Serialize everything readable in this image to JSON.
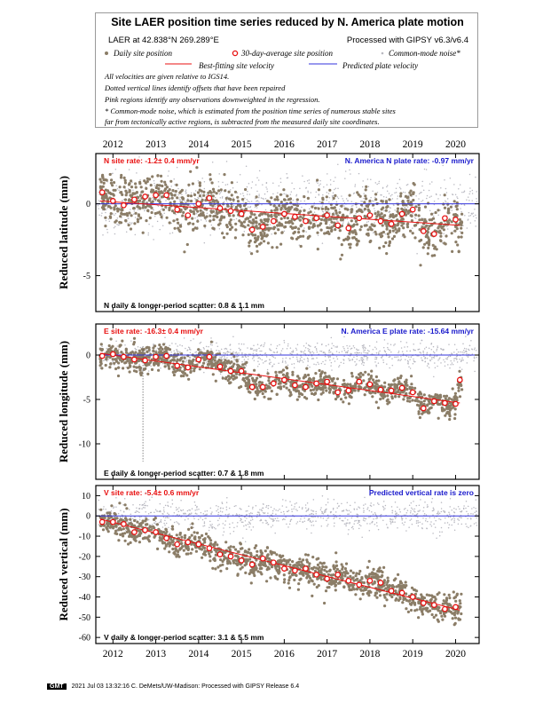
{
  "header": {
    "title": "Site LAER position time series reduced by N. America plate motion",
    "location": "LAER at 42.838°N 269.289°E",
    "processed": "Processed with GIPSY v6.3/v6.4",
    "legend": {
      "daily": "Daily site position",
      "avg30": "30-day-average site position",
      "cmn": "Common-mode noise*",
      "best_fit": "Best-fitting site velocity",
      "predicted": "Predicted plate velocity"
    },
    "notes": [
      "All velocities are given relative to IGS14.",
      "Dotted vertical lines identify offsets that have been repaired",
      "Pink regions identify any observations downweighted in the regression.",
      "* Common-mode noise, which is estimated from the position time series of numerous stable sites",
      "far from tectonically active regions, is subtracted from the measured daily site coordinates."
    ]
  },
  "colors": {
    "daily": "#8b7d67",
    "avg30": "#e81010",
    "cmn": "#b8b8c0",
    "fit": "#e81010",
    "predicted": "#3333dd",
    "rate_text": "#e81010",
    "plate_text": "#1a1acc"
  },
  "chart_data": [
    {
      "type": "scatter",
      "panel": "north",
      "ylabel": "Reduced latitude (mm)",
      "ylim": [
        -7.5,
        3.5
      ],
      "yticks": [
        0,
        -5
      ],
      "xlim": [
        2011.6,
        2020.55
      ],
      "xticks": [
        2012,
        2013,
        2014,
        2015,
        2016,
        2017,
        2018,
        2019,
        2020
      ],
      "site_rate": "N site rate:  -1.2± 0.4 mm/yr",
      "plate_rate": "N. America N plate rate:  -0.97 mm/yr",
      "scatter_label": "N daily & longer-period scatter:    0.8 &    1.1 mm",
      "fit_line": {
        "x": [
          2011.7,
          2020.1
        ],
        "y": [
          0.2,
          -1.5
        ]
      },
      "predicted_line": {
        "y": 0
      },
      "scatter_sd": 0.9,
      "avg30": [
        {
          "x": 2011.75,
          "y": 0.8
        },
        {
          "x": 2012.0,
          "y": 0.2
        },
        {
          "x": 2012.25,
          "y": -0.1
        },
        {
          "x": 2012.5,
          "y": 0.3
        },
        {
          "x": 2012.75,
          "y": 0.5
        },
        {
          "x": 2013.0,
          "y": 0.6
        },
        {
          "x": 2013.25,
          "y": 0.6
        },
        {
          "x": 2013.5,
          "y": -0.4
        },
        {
          "x": 2013.75,
          "y": -0.8
        },
        {
          "x": 2014.0,
          "y": 0.0
        },
        {
          "x": 2014.25,
          "y": 0.4
        },
        {
          "x": 2014.5,
          "y": -0.3
        },
        {
          "x": 2014.75,
          "y": -0.5
        },
        {
          "x": 2015.0,
          "y": -0.7
        },
        {
          "x": 2015.25,
          "y": -1.8
        },
        {
          "x": 2015.5,
          "y": -1.6
        },
        {
          "x": 2015.75,
          "y": -1.2
        },
        {
          "x": 2016.0,
          "y": -0.7
        },
        {
          "x": 2016.25,
          "y": -0.9
        },
        {
          "x": 2016.5,
          "y": -1.2
        },
        {
          "x": 2016.75,
          "y": -1.0
        },
        {
          "x": 2017.0,
          "y": -0.8
        },
        {
          "x": 2017.25,
          "y": -1.5
        },
        {
          "x": 2017.5,
          "y": -1.7
        },
        {
          "x": 2017.75,
          "y": -1.0
        },
        {
          "x": 2018.0,
          "y": -0.8
        },
        {
          "x": 2018.25,
          "y": -1.2
        },
        {
          "x": 2018.5,
          "y": -1.4
        },
        {
          "x": 2018.75,
          "y": -0.7
        },
        {
          "x": 2019.0,
          "y": -0.4
        },
        {
          "x": 2019.25,
          "y": -1.9
        },
        {
          "x": 2019.5,
          "y": -2.1
        },
        {
          "x": 2019.75,
          "y": -1.0
        },
        {
          "x": 2020.0,
          "y": -1.1
        }
      ]
    },
    {
      "type": "scatter",
      "panel": "east",
      "ylabel": "Reduced longitude (mm)",
      "ylim": [
        -14,
        3.5
      ],
      "yticks": [
        0,
        -5,
        -10
      ],
      "xlim": [
        2011.6,
        2020.55
      ],
      "site_rate": "E site rate:  -16.3± 0.4 mm/yr",
      "plate_rate": "N. America E plate rate:  -15.64 mm/yr",
      "scatter_label": "E daily & longer-period scatter:    0.7 &    1.8 mm",
      "fit_line": {
        "x": [
          2011.7,
          2020.1
        ],
        "y": [
          0.2,
          -5.4
        ]
      },
      "predicted_line": {
        "y": 0
      },
      "offset_line_x": 2012.7,
      "scatter_sd": 0.7,
      "avg30": [
        {
          "x": 2011.75,
          "y": -0.1
        },
        {
          "x": 2012.0,
          "y": 0.1
        },
        {
          "x": 2012.25,
          "y": -0.2
        },
        {
          "x": 2012.5,
          "y": -0.5
        },
        {
          "x": 2012.75,
          "y": -0.6
        },
        {
          "x": 2013.0,
          "y": -0.2
        },
        {
          "x": 2013.25,
          "y": -0.1
        },
        {
          "x": 2013.5,
          "y": -1.2
        },
        {
          "x": 2013.75,
          "y": -1.4
        },
        {
          "x": 2014.0,
          "y": -0.5
        },
        {
          "x": 2014.25,
          "y": -0.2
        },
        {
          "x": 2014.5,
          "y": -1.3
        },
        {
          "x": 2014.75,
          "y": -1.8
        },
        {
          "x": 2015.0,
          "y": -1.8
        },
        {
          "x": 2015.25,
          "y": -3.6
        },
        {
          "x": 2015.5,
          "y": -3.6
        },
        {
          "x": 2015.75,
          "y": -3.2
        },
        {
          "x": 2016.0,
          "y": -2.8
        },
        {
          "x": 2016.25,
          "y": -3.4
        },
        {
          "x": 2016.5,
          "y": -3.6
        },
        {
          "x": 2016.75,
          "y": -3.2
        },
        {
          "x": 2017.0,
          "y": -3.0
        },
        {
          "x": 2017.25,
          "y": -4.2
        },
        {
          "x": 2017.5,
          "y": -4.0
        },
        {
          "x": 2017.75,
          "y": -3.0
        },
        {
          "x": 2018.0,
          "y": -3.3
        },
        {
          "x": 2018.25,
          "y": -3.9
        },
        {
          "x": 2018.5,
          "y": -4.0
        },
        {
          "x": 2018.75,
          "y": -3.7
        },
        {
          "x": 2019.0,
          "y": -4.2
        },
        {
          "x": 2019.25,
          "y": -6.0
        },
        {
          "x": 2019.5,
          "y": -5.2
        },
        {
          "x": 2019.75,
          "y": -5.4
        },
        {
          "x": 2020.0,
          "y": -5.5
        },
        {
          "x": 2020.1,
          "y": -2.8
        }
      ]
    },
    {
      "type": "scatter",
      "panel": "vertical",
      "ylabel": "Reduced vertical (mm)",
      "ylim": [
        -63,
        15
      ],
      "yticks": [
        10,
        0,
        -10,
        -20,
        -30,
        -40,
        -50,
        -60
      ],
      "xlim": [
        2011.6,
        2020.55
      ],
      "site_rate": "V site rate:  -5.4± 0.6 mm/yr",
      "plate_rate": "Predicted vertical rate is zero",
      "scatter_label": "V daily & longer-period scatter:    3.1 &    5.5 mm",
      "fit_line": {
        "x": [
          2011.7,
          2020.1
        ],
        "y": [
          -1.5,
          -46.5
        ]
      },
      "predicted_line": {
        "y": 0
      },
      "scatter_sd": 3.5,
      "avg30": [
        {
          "x": 2011.75,
          "y": -3
        },
        {
          "x": 2012.0,
          "y": -3
        },
        {
          "x": 2012.25,
          "y": -4
        },
        {
          "x": 2012.5,
          "y": -8
        },
        {
          "x": 2012.75,
          "y": -7
        },
        {
          "x": 2013.0,
          "y": -8
        },
        {
          "x": 2013.25,
          "y": -11
        },
        {
          "x": 2013.5,
          "y": -14
        },
        {
          "x": 2013.75,
          "y": -13
        },
        {
          "x": 2014.0,
          "y": -14
        },
        {
          "x": 2014.25,
          "y": -16
        },
        {
          "x": 2014.5,
          "y": -19
        },
        {
          "x": 2014.75,
          "y": -20
        },
        {
          "x": 2015.0,
          "y": -22
        },
        {
          "x": 2015.25,
          "y": -24
        },
        {
          "x": 2015.5,
          "y": -21
        },
        {
          "x": 2015.75,
          "y": -23
        },
        {
          "x": 2016.0,
          "y": -26
        },
        {
          "x": 2016.25,
          "y": -27
        },
        {
          "x": 2016.5,
          "y": -26
        },
        {
          "x": 2016.75,
          "y": -29
        },
        {
          "x": 2017.0,
          "y": -31
        },
        {
          "x": 2017.25,
          "y": -29
        },
        {
          "x": 2017.5,
          "y": -32
        },
        {
          "x": 2017.75,
          "y": -34
        },
        {
          "x": 2018.0,
          "y": -32
        },
        {
          "x": 2018.25,
          "y": -33
        },
        {
          "x": 2018.5,
          "y": -37
        },
        {
          "x": 2018.75,
          "y": -38
        },
        {
          "x": 2019.0,
          "y": -40
        },
        {
          "x": 2019.25,
          "y": -43
        },
        {
          "x": 2019.5,
          "y": -44
        },
        {
          "x": 2019.75,
          "y": -46
        },
        {
          "x": 2020.0,
          "y": -45
        }
      ]
    }
  ],
  "footer": {
    "badge": "GMT",
    "text": "2021 Jul 03 13:32:16   C. DeMets/UW-Madison: Processed with GIPSY Release 6.4"
  }
}
